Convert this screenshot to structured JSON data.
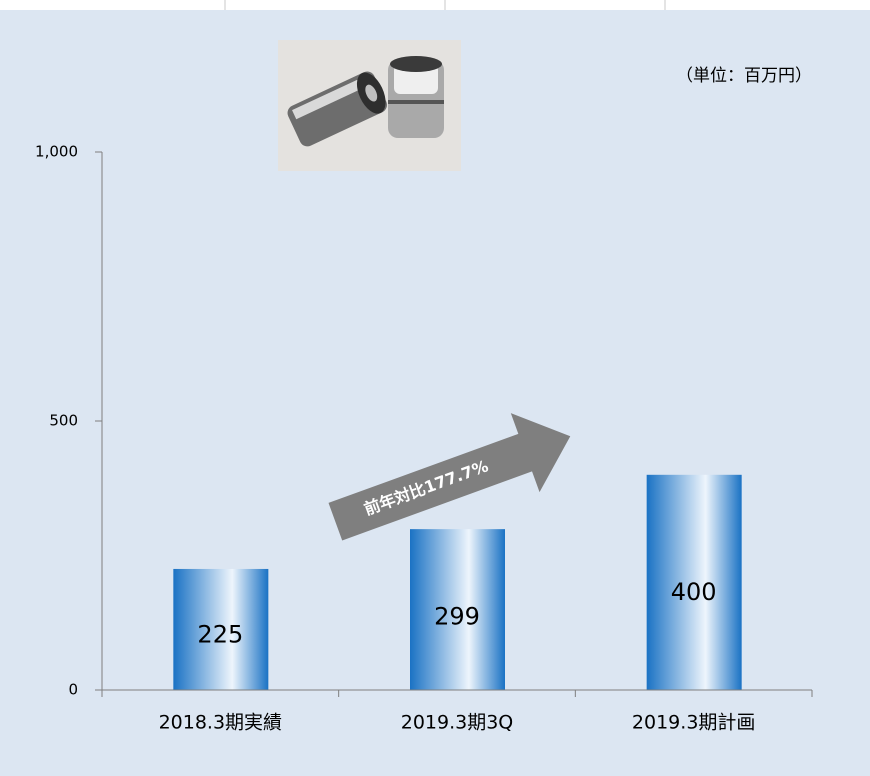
{
  "chart_data": {
    "type": "bar",
    "unit_label": "（単位：百万円）",
    "annotation": "前年対比177.7%",
    "categories": [
      "2018.3期実績",
      "2019.3期3Q",
      "2019.3期計画"
    ],
    "values": [
      225,
      299,
      400
    ],
    "color": "#1a72c4",
    "ylim": [
      0,
      1000
    ],
    "yticks": [
      0,
      500,
      {
        "value": 1000,
        "label": "1,000"
      }
    ]
  }
}
